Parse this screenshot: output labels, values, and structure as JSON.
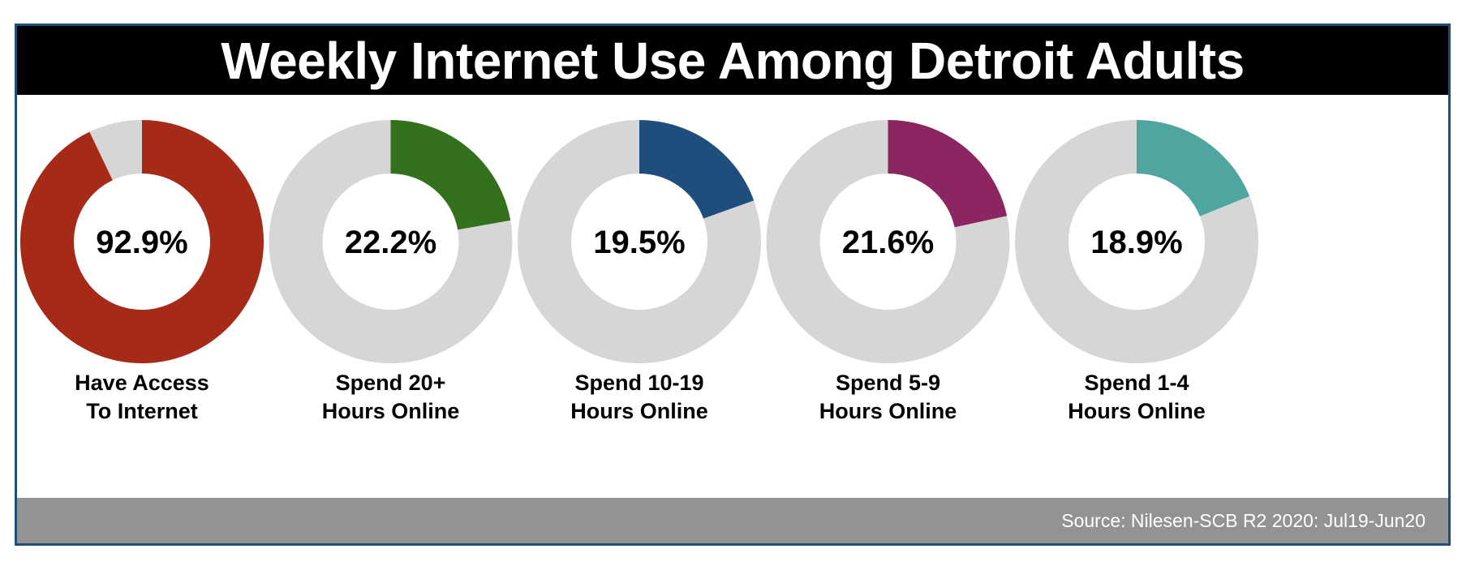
{
  "title": "Weekly Internet Use Among Detroit Adults",
  "source": "Source: Nilesen-SCB R2 2020: Jul19-Jun20",
  "colors": {
    "remainder": "#d6d6d6",
    "frame": "#1f4e79",
    "title_bg": "#000000",
    "footer_bg": "#939393"
  },
  "chart_data": {
    "type": "pie",
    "title": "Weekly Internet Use Among Detroit Adults",
    "series": [
      {
        "label_lines": [
          "Have Access",
          "To Internet"
        ],
        "value": 92.9,
        "display": "92.9%",
        "color": "#a52a18"
      },
      {
        "label_lines": [
          "Spend 20+",
          "Hours Online"
        ],
        "value": 22.2,
        "display": "22.2%",
        "color": "#33711e"
      },
      {
        "label_lines": [
          "Spend 10-19",
          "Hours Online"
        ],
        "value": 19.5,
        "display": "19.5%",
        "color": "#1f4e7d"
      },
      {
        "label_lines": [
          "Spend 5-9",
          "Hours Online"
        ],
        "value": 21.6,
        "display": "21.6%",
        "color": "#8b2660"
      },
      {
        "label_lines": [
          "Spend 1-4",
          "Hours Online"
        ],
        "value": 18.9,
        "display": "18.9%",
        "color": "#4fa69f"
      }
    ]
  }
}
